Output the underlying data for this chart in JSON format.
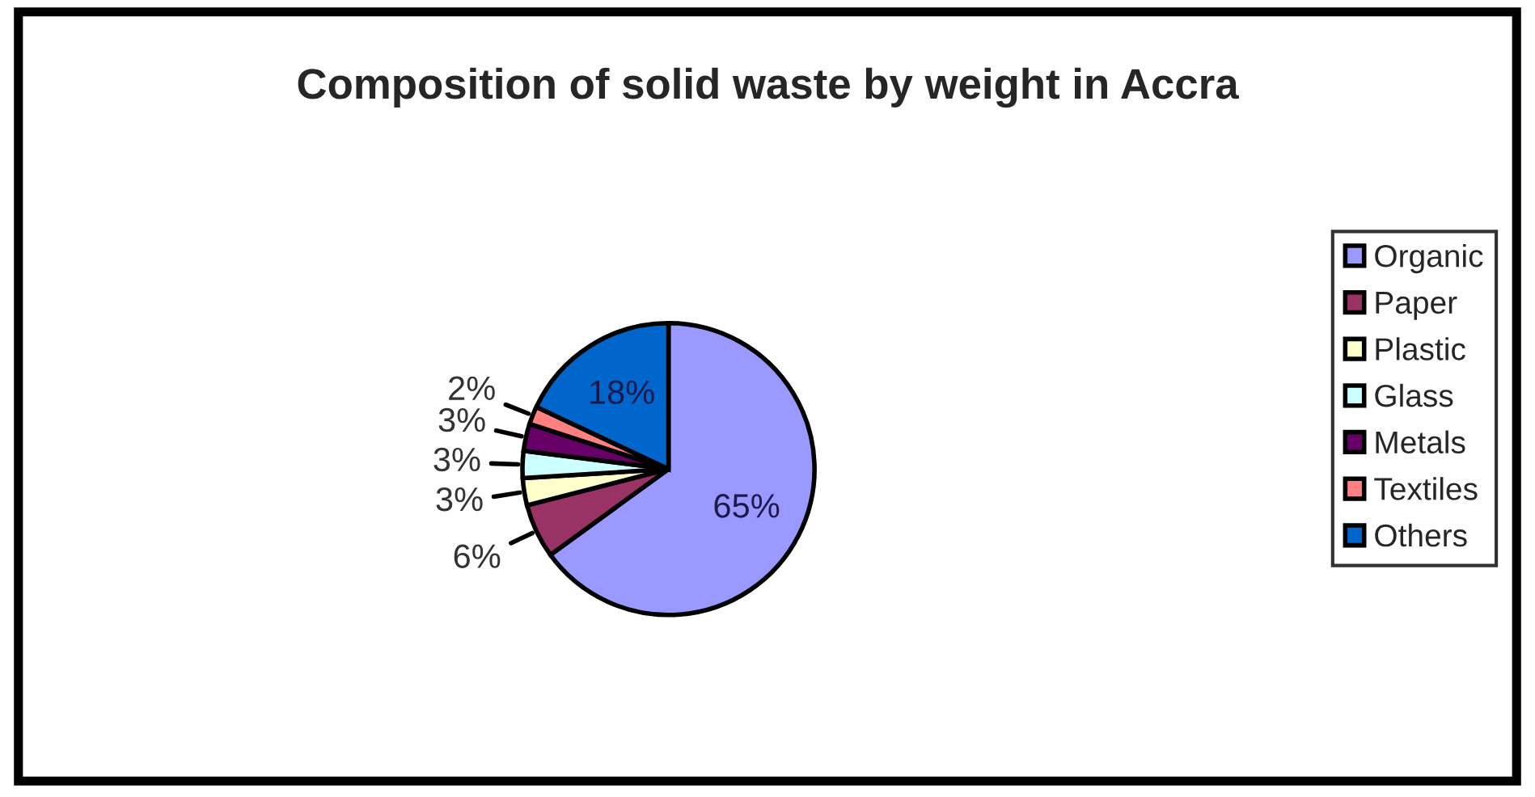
{
  "chart_data": {
    "type": "pie",
    "title": "Composition of solid waste by weight in Accra",
    "categories": [
      "Organic",
      "Paper",
      "Plastic",
      "Glass",
      "Metals",
      "Textiles",
      "Others"
    ],
    "values": [
      65,
      6,
      3,
      3,
      3,
      2,
      18
    ],
    "colors": [
      "#9999ff",
      "#993366",
      "#ffffcc",
      "#ccffff",
      "#660066",
      "#ff8080",
      "#0066cc"
    ],
    "value_labels": [
      "65%",
      "6%",
      "3%",
      "3%",
      "3%",
      "2%",
      "18%"
    ],
    "legend": "right"
  }
}
